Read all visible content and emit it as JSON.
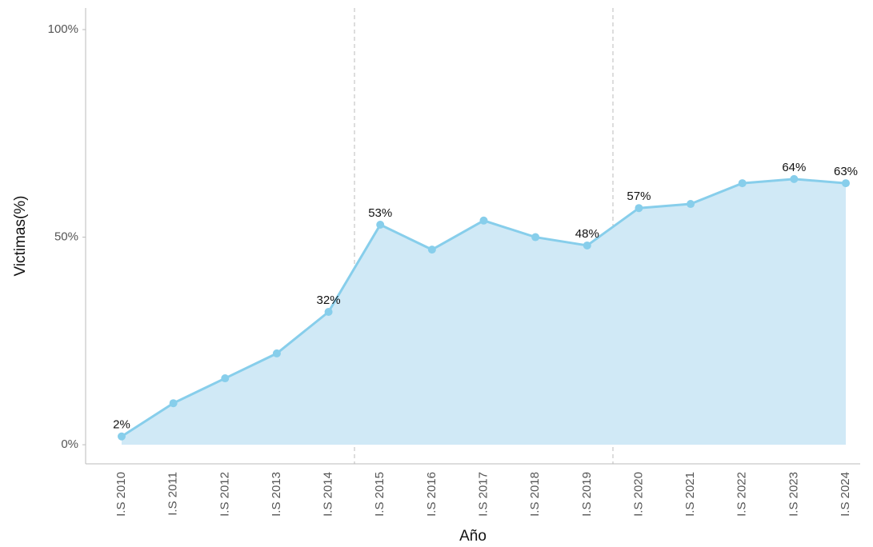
{
  "chart_data": {
    "type": "area",
    "x_label": "Año",
    "y_label": "Victimas(%)",
    "categories": [
      "I.S 2010",
      "I.S 2011",
      "I.S 2012",
      "I.S 2013",
      "I.S 2014",
      "I.S 2015",
      "I.S 2016",
      "I.S 2017",
      "I.S 2018",
      "I.S 2019",
      "I.S 2020",
      "I.S 2021",
      "I.S 2022",
      "I.S 2023",
      "I.S 2024"
    ],
    "series": [
      {
        "name": "Victimas",
        "color": "#87ceeb",
        "fill": "#d0e9f6",
        "values": [
          2,
          10,
          16,
          22,
          32,
          53,
          47,
          54,
          50,
          48,
          57,
          58,
          63,
          64,
          63
        ],
        "value_labels": [
          "2%",
          null,
          null,
          null,
          "32%",
          "53%",
          null,
          null,
          null,
          "48%",
          "57%",
          null,
          null,
          "64%",
          "63%"
        ]
      }
    ],
    "ylim": [
      -4.6,
      105.2
    ],
    "yticks": [
      {
        "value": 0,
        "label": "0%"
      },
      {
        "value": 50,
        "label": "50%"
      },
      {
        "value": 100,
        "label": "100%"
      }
    ]
  }
}
